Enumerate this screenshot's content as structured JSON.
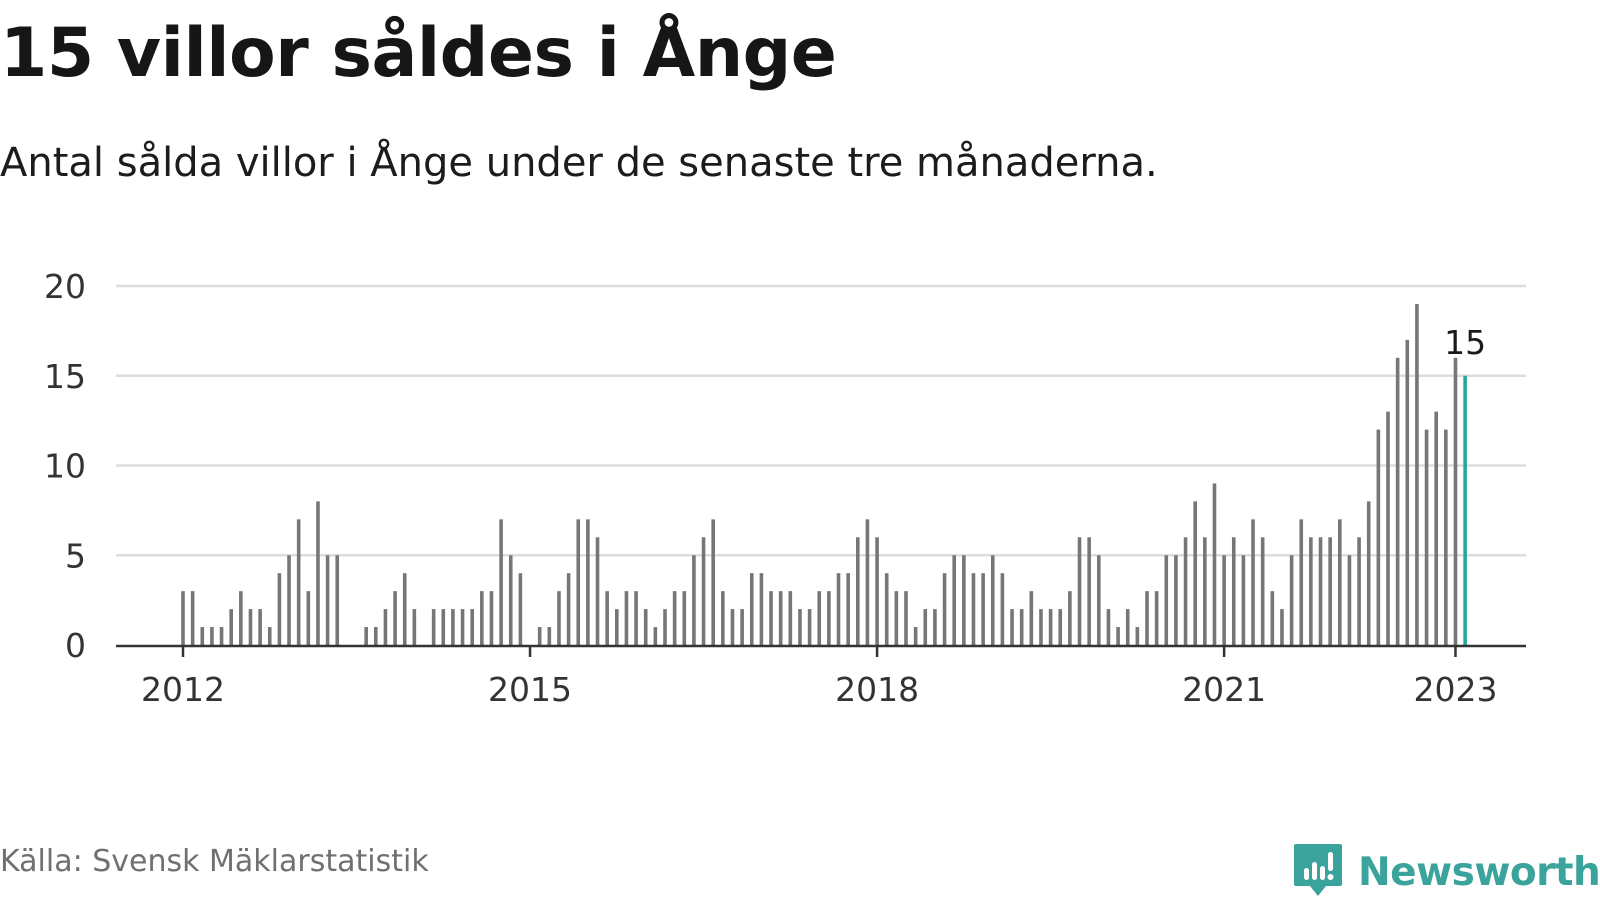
{
  "header": {
    "title": "15 villor såldes i Ånge",
    "subtitle": "Antal sålda villor i Ånge under de senaste tre månaderna."
  },
  "footer": {
    "source": "Källa: Svensk Mäklarstatistik",
    "brand_name": "Newsworthy",
    "brand_color": "#3aa39c"
  },
  "colors": {
    "bar": "#767676",
    "highlight": "#23a89b",
    "grid": "#dddddd",
    "axis": "#333333"
  },
  "chart_data": {
    "type": "bar",
    "title": "",
    "xlabel": "",
    "ylabel": "",
    "ylim": [
      0,
      20
    ],
    "yticks": [
      0,
      5,
      10,
      15,
      20
    ],
    "xticks": [
      "2012",
      "2015",
      "2018",
      "2021",
      "2023"
    ],
    "x_start": "2012-01",
    "x_end": "2023-01",
    "grid": true,
    "highlight_last": true,
    "last_value_label": "15",
    "series": [
      {
        "values": [
          3,
          3,
          1,
          1,
          1,
          2,
          3,
          2,
          2,
          1,
          4,
          5,
          7,
          3,
          8,
          5,
          5,
          null,
          null,
          1,
          1,
          2,
          3,
          4,
          2,
          null,
          2,
          2,
          2,
          2,
          2,
          3,
          3,
          7,
          5,
          4,
          null,
          1,
          1,
          3,
          4,
          7,
          7,
          6,
          3,
          2,
          3,
          3,
          2,
          1,
          2,
          3,
          3,
          5,
          6,
          7,
          3,
          2,
          2,
          4,
          4,
          3,
          3,
          3,
          2,
          2,
          3,
          3,
          4,
          4,
          6,
          7,
          6,
          4,
          3,
          3,
          1,
          2,
          2,
          4,
          5,
          5,
          4,
          4,
          5,
          4,
          2,
          2,
          3,
          2,
          2,
          2,
          3,
          6,
          6,
          5,
          2,
          1,
          2,
          1,
          3,
          3,
          5,
          5,
          6,
          8,
          6,
          9,
          5,
          6,
          5,
          7,
          6,
          3,
          2,
          5,
          7,
          6,
          6,
          6,
          7,
          5,
          6,
          8,
          12,
          13,
          16,
          17,
          19,
          12,
          13,
          12,
          16,
          15
        ]
      }
    ]
  }
}
